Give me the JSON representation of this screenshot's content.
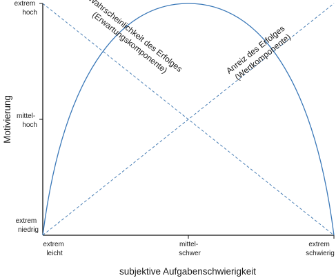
{
  "diagram": {
    "y_axis_label": "Motivierung",
    "x_axis_label": "subjektive Aufgabenschwierigkeit",
    "y_ticks": [
      {
        "lines": [
          "extrem",
          "hoch"
        ]
      },
      {
        "lines": [
          "mittel-",
          "hoch"
        ]
      },
      {
        "lines": [
          "extrem",
          "niedrig"
        ]
      }
    ],
    "x_ticks": [
      {
        "lines": [
          "extrem",
          "leicht"
        ]
      },
      {
        "lines": [
          "mittel-",
          "schwer"
        ]
      },
      {
        "lines": [
          "extrem",
          "schwierig"
        ]
      }
    ],
    "curves": [
      {
        "id": "probability",
        "style": "dashed",
        "lines": [
          "Wahrscheinlichkeit des Erfolges",
          "(Erwartungskomponente)"
        ]
      },
      {
        "id": "incentive",
        "style": "dashed",
        "lines": [
          "Anreiz des Erfolges",
          "(Wertkomponente)"
        ]
      },
      {
        "id": "motivation",
        "style": "solid"
      }
    ],
    "colors": {
      "curve": "#3a78b8",
      "dashed": "#4a7fb5",
      "axis": "#111111",
      "text": "#1a1a1a",
      "background": "#ffffff"
    }
  }
}
